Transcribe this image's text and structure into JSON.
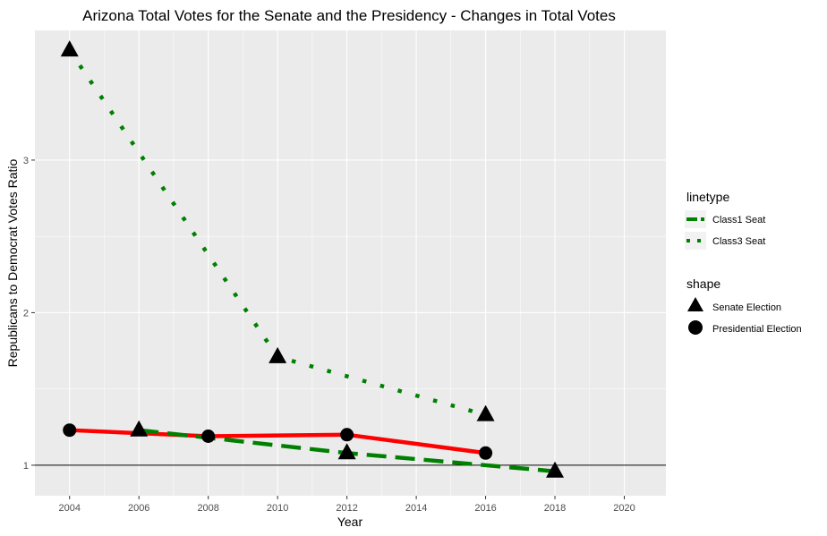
{
  "chart_data": {
    "type": "line",
    "title": "Arizona Total Votes for the Senate and the Presidency - Changes in Total Votes",
    "xlabel": "Year",
    "ylabel": "Republicans to Democrat Votes Ratio",
    "xlim": [
      2003.0,
      2021.2
    ],
    "ylim": [
      0.8,
      3.85
    ],
    "x_ticks": [
      2004,
      2006,
      2008,
      2010,
      2012,
      2014,
      2016,
      2018,
      2020
    ],
    "y_ticks": [
      1,
      2,
      3
    ],
    "reference_line_y": 1,
    "grid": true,
    "legend_position": "right",
    "background_color": "#ebebeb",
    "grid_color": "#ffffff",
    "presidential_line": {
      "color": "#ff0000",
      "x": [
        2004,
        2008,
        2012,
        2016
      ],
      "y": [
        1.23,
        1.19,
        1.2,
        1.08
      ]
    },
    "series": [
      {
        "name": "Class1 Seat",
        "linetype": "dashed",
        "color": "#008000",
        "x": [
          2006,
          2012,
          2018
        ],
        "y": [
          1.23,
          1.08,
          0.96
        ]
      },
      {
        "name": "Class3 Seat",
        "linetype": "dotted",
        "color": "#008000",
        "x": [
          2004,
          2010,
          2016
        ],
        "y": [
          3.72,
          1.71,
          1.33
        ]
      }
    ],
    "points": {
      "senate": [
        {
          "x": 2004,
          "y": 3.72
        },
        {
          "x": 2006,
          "y": 1.23
        },
        {
          "x": 2010,
          "y": 1.71
        },
        {
          "x": 2012,
          "y": 1.08
        },
        {
          "x": 2016,
          "y": 1.33
        },
        {
          "x": 2018,
          "y": 0.96
        }
      ],
      "presidential": [
        {
          "x": 2004,
          "y": 1.23
        },
        {
          "x": 2008,
          "y": 1.19
        },
        {
          "x": 2012,
          "y": 1.2
        },
        {
          "x": 2016,
          "y": 1.08
        }
      ]
    },
    "legend": {
      "linetype_title": "linetype",
      "linetype_items": [
        "Class1 Seat",
        "Class3 Seat"
      ],
      "shape_title": "shape",
      "shape_items": [
        "Senate Election",
        "Presidential Election"
      ]
    }
  }
}
